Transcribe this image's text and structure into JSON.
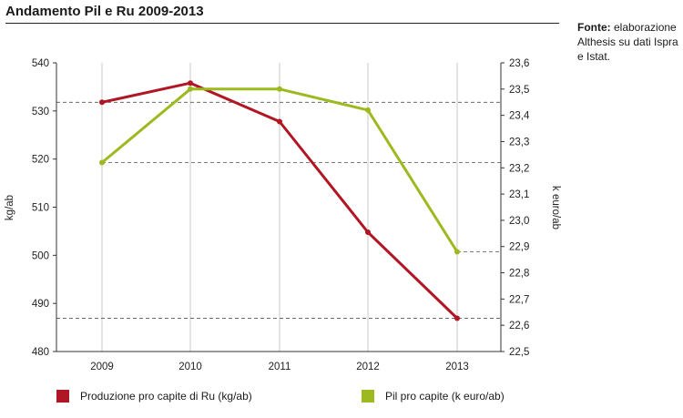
{
  "title": "Andamento Pil e Ru 2009-2013",
  "source": {
    "label": "Fonte:",
    "text": " elaborazione Althesis su dati Ispra e Istat."
  },
  "chart_data": {
    "type": "line",
    "x": [
      "2009",
      "2010",
      "2011",
      "2012",
      "2013"
    ],
    "ylabel_left": "kg/ab",
    "ylabel_right": "k euro/ab",
    "ylim_left": [
      480,
      540
    ],
    "yticks_left": [
      "480",
      "490",
      "500",
      "510",
      "520",
      "530",
      "540"
    ],
    "ylim_right": [
      22.5,
      23.6
    ],
    "yticks_right": [
      "22,5",
      "22,6",
      "22,7",
      "22,8",
      "22,9",
      "23,0",
      "23,1",
      "23,2",
      "23,3",
      "23,4",
      "23,5",
      "23,6"
    ],
    "series": [
      {
        "name": "Produzione pro capite di Ru (kg/ab)",
        "axis": "left",
        "color": "#b01623",
        "values": [
          531.8,
          535.8,
          527.8,
          504.8,
          486.9
        ]
      },
      {
        "name": "Pil pro capite (k euro/ab)",
        "axis": "right",
        "color": "#9cba1f",
        "values": [
          23.22,
          23.5,
          23.5,
          23.42,
          22.88
        ]
      }
    ],
    "grid": "vertical",
    "reference_lines": [
      {
        "axis": "left",
        "value": 531.8
      },
      {
        "axis": "left",
        "value": 486.9
      },
      {
        "axis": "right",
        "value": 23.22
      },
      {
        "axis": "right",
        "value": 22.88
      }
    ],
    "legend_position": "bottom"
  }
}
